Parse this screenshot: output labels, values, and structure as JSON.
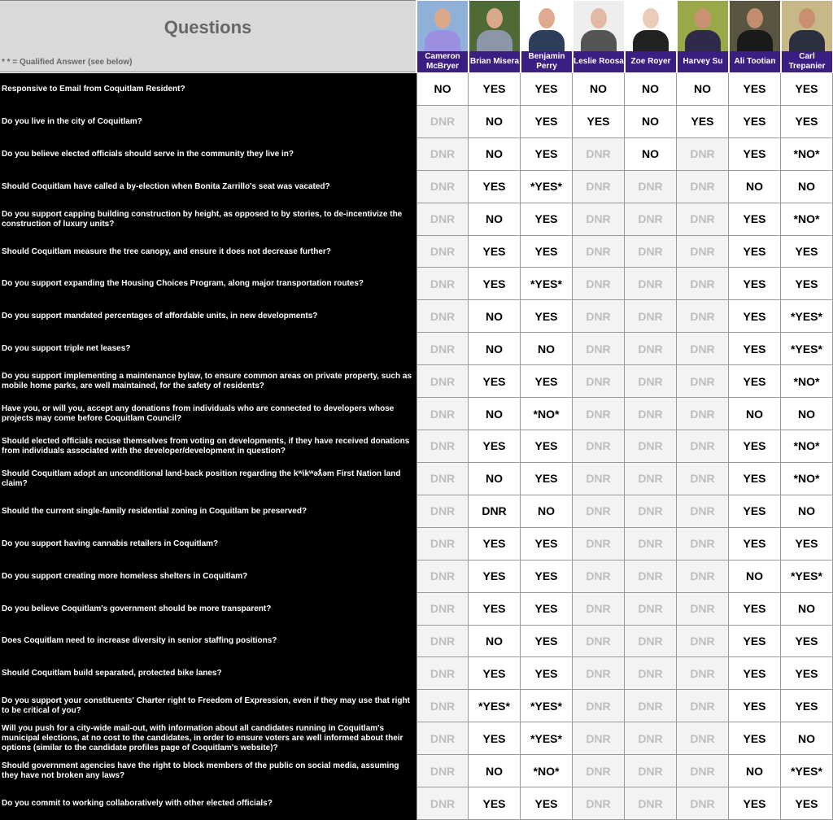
{
  "header": {
    "title": "Questions",
    "note": "* * = Qualified Answer (see below)"
  },
  "colors": {
    "name_band": "#3c1e82",
    "question_bg": "#000000",
    "dnr_bg": "#f3f3f3",
    "dnr_text": "#bdbdbd"
  },
  "candidates": [
    {
      "name": "Cameron McBryer",
      "photo_bg": "#8fb0d8",
      "skin": "#d9a98a",
      "shirt": "#9a8fe0"
    },
    {
      "name": "Brian Misera",
      "photo_bg": "#4f6b35",
      "skin": "#d7a88a",
      "shirt": "#8c96a8"
    },
    {
      "name": "Benjamin Perry",
      "photo_bg": "#ffffff",
      "skin": "#e0aa90",
      "shirt": "#2c3e5c"
    },
    {
      "name": "Leslie Roosa",
      "photo_bg": "#eeeeee",
      "skin": "#e3b9a3",
      "shirt": "#555555"
    },
    {
      "name": "Zoe Royer",
      "photo_bg": "#ffffff",
      "skin": "#eccbb8",
      "shirt": "#222222"
    },
    {
      "name": "Harvey Su",
      "photo_bg": "#9aa84a",
      "skin": "#c99372",
      "shirt": "#2e2a4a"
    },
    {
      "name": "Ali Tootian",
      "photo_bg": "#5a5540",
      "skin": "#c08e6e",
      "shirt": "#1a1a1a"
    },
    {
      "name": "Carl Trepanier",
      "photo_bg": "#c8b888",
      "skin": "#c99070",
      "shirt": "#2a3040"
    }
  ],
  "rows": [
    {
      "question": "Responsive to Email from Coquitlam Resident?",
      "answers": [
        "NO",
        "YES",
        "YES",
        "NO",
        "NO",
        "NO",
        "YES",
        "YES"
      ]
    },
    {
      "question": "Do you live in the city of Coquitlam?",
      "answers": [
        "DNR",
        "NO",
        "YES",
        "YES",
        "NO",
        "YES",
        "YES",
        "YES"
      ]
    },
    {
      "question": "Do you believe elected officials should serve in the community they live in?",
      "answers": [
        "DNR",
        "NO",
        "YES",
        "DNR",
        "NO",
        "DNR",
        "YES",
        "*NO*"
      ]
    },
    {
      "question": "Should Coquitlam have called a by-election when Bonita Zarrillo's seat was vacated?",
      "answers": [
        "DNR",
        "YES",
        "*YES*",
        "DNR",
        "DNR",
        "DNR",
        "NO",
        "NO"
      ]
    },
    {
      "question": "Do you support capping building construction by height, as opposed to by stories, to de-incentivize the construction of luxury units?",
      "answers": [
        "DNR",
        "NO",
        "YES",
        "DNR",
        "DNR",
        "DNR",
        "YES",
        "*NO*"
      ]
    },
    {
      "question": "Should Coquitlam measure the tree canopy, and ensure it does not decrease further?",
      "answers": [
        "DNR",
        "YES",
        "YES",
        "DNR",
        "DNR",
        "DNR",
        "YES",
        "YES"
      ]
    },
    {
      "question": "Do you support expanding the Housing Choices Program, along major transportation routes?",
      "answers": [
        "DNR",
        "YES",
        "*YES*",
        "DNR",
        "DNR",
        "DNR",
        "YES",
        "YES"
      ]
    },
    {
      "question": "Do you support mandated percentages of affordable units, in new developments?",
      "answers": [
        "DNR",
        "NO",
        "YES",
        "DNR",
        "DNR",
        "DNR",
        "YES",
        "*YES*"
      ]
    },
    {
      "question": "Do you support triple net leases?",
      "answers": [
        "DNR",
        "NO",
        "NO",
        "DNR",
        "DNR",
        "DNR",
        "YES",
        "*YES*"
      ]
    },
    {
      "question": "Do you support implementing a maintenance bylaw, to ensure common areas on private property, such as mobile home parks, are well maintained, for the safety of residents?",
      "answers": [
        "DNR",
        "YES",
        "YES",
        "DNR",
        "DNR",
        "DNR",
        "YES",
        "*NO*"
      ]
    },
    {
      "question": "Have you, or will you, accept any donations from individuals who are connected to developers whose projects may come before Coquitlam Council?",
      "answers": [
        "DNR",
        "NO",
        "*NO*",
        "DNR",
        "DNR",
        "DNR",
        "NO",
        "NO"
      ]
    },
    {
      "question": "Should elected officials recuse themselves from voting on developments, if they have received donations from individuals associated with the developer/development in question?",
      "answers": [
        "DNR",
        "YES",
        "YES",
        "DNR",
        "DNR",
        "DNR",
        "YES",
        "*NO*"
      ]
    },
    {
      "question": "Should Coquitlam adopt an unconditional land-back position regarding the kʷikʷəƛ̓əm First Nation land claim?",
      "answers": [
        "DNR",
        "NO",
        "YES",
        "DNR",
        "DNR",
        "DNR",
        "YES",
        "*NO*"
      ]
    },
    {
      "question": "Should the current single-family residential zoning in Coquitlam be preserved?",
      "answers": [
        "DNR",
        "DNR",
        "NO",
        "DNR",
        "DNR",
        "DNR",
        "YES",
        "NO"
      ],
      "answered_dnr": [
        1
      ]
    },
    {
      "question": "Do you support having cannabis retailers in Coquitlam?",
      "answers": [
        "DNR",
        "YES",
        "YES",
        "DNR",
        "DNR",
        "DNR",
        "YES",
        "YES"
      ]
    },
    {
      "question": "Do you support creating more homeless shelters in Coquitlam?",
      "answers": [
        "DNR",
        "YES",
        "YES",
        "DNR",
        "DNR",
        "DNR",
        "NO",
        "*YES*"
      ]
    },
    {
      "question": "Do you believe Coquitlam's government should be more transparent?",
      "answers": [
        "DNR",
        "YES",
        "YES",
        "DNR",
        "DNR",
        "DNR",
        "YES",
        "NO"
      ]
    },
    {
      "question": "Does Coquitlam need to increase diversity in senior staffing positions?",
      "answers": [
        "DNR",
        "NO",
        "YES",
        "DNR",
        "DNR",
        "DNR",
        "YES",
        "YES"
      ]
    },
    {
      "question": "Should Coquitlam build separated, protected bike lanes?",
      "answers": [
        "DNR",
        "YES",
        "YES",
        "DNR",
        "DNR",
        "DNR",
        "YES",
        "YES"
      ]
    },
    {
      "question": "Do you support your constituents' Charter right to Freedom of Expression, even if they may use that right to be critical of you?",
      "answers": [
        "DNR",
        "*YES*",
        "*YES*",
        "DNR",
        "DNR",
        "DNR",
        "YES",
        "YES"
      ]
    },
    {
      "question": "Will you push for a city-wide mail-out, with information about all candidates running in Coquitlam's municipal elections, at no cost to the candidates, in order to ensure voters are well informed about their options (similar to the candidate profiles page of Coquitlam's website)?",
      "answers": [
        "DNR",
        "YES",
        "*YES*",
        "DNR",
        "DNR",
        "DNR",
        "YES",
        "NO"
      ]
    },
    {
      "question": "Should government agencies have the right to block members of the public on social media, assuming they have not broken any laws?",
      "answers": [
        "DNR",
        "NO",
        "*NO*",
        "DNR",
        "DNR",
        "DNR",
        "NO",
        "*YES*"
      ]
    },
    {
      "question": "Do you commit to working collaboratively with other elected officials?",
      "answers": [
        "DNR",
        "YES",
        "YES",
        "DNR",
        "DNR",
        "DNR",
        "YES",
        "YES"
      ]
    }
  ]
}
